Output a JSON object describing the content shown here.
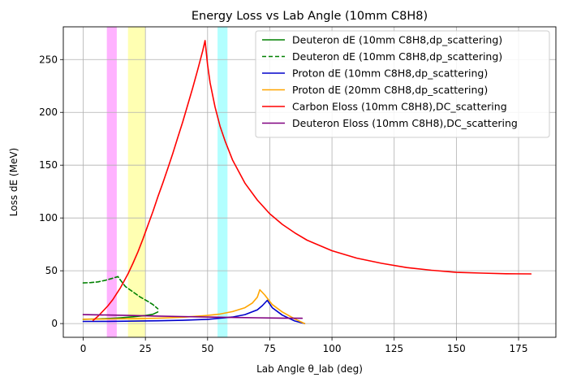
{
  "chart_data": {
    "type": "line",
    "title": "Energy Loss vs Lab Angle (10mm C8H8)",
    "xlabel": "Lab Angle θ_lab (deg)",
    "ylabel": "Loss dE (MeV)",
    "xlim": [
      -8,
      190
    ],
    "ylim": [
      -13,
      281
    ],
    "xticks": [
      0,
      25,
      50,
      75,
      100,
      125,
      150,
      175
    ],
    "yticks": [
      0,
      50,
      100,
      150,
      200,
      250
    ],
    "grid": true,
    "legend_position": "top-right",
    "bands": [
      {
        "x0": 9.5,
        "x1": 13.5,
        "color": "#ff00ff",
        "opacity": 0.3
      },
      {
        "x0": 18,
        "x1": 25,
        "color": "#ffff00",
        "opacity": 0.3
      },
      {
        "x0": 54,
        "x1": 58,
        "color": "#00ffff",
        "opacity": 0.3
      }
    ],
    "series": [
      {
        "name": "Deuteron dE (10mm C8H8,dp_scattering)",
        "color": "#008000",
        "dash": "solid",
        "x": [
          0,
          5,
          10,
          15,
          20,
          25,
          28,
          30
        ],
        "y": [
          4,
          4.3,
          4.8,
          5.5,
          6.4,
          7.6,
          8.8,
          11
        ]
      },
      {
        "name": "Deuteron dE (10mm C8H8,dp_scattering)",
        "color": "#008000",
        "dash": "dashed",
        "x": [
          0,
          3,
          6,
          9,
          12,
          14,
          15,
          17,
          20,
          23,
          26,
          28,
          30
        ],
        "y": [
          38.5,
          38.8,
          39.5,
          41,
          43,
          44.5,
          41,
          35,
          30,
          25,
          21,
          18,
          14
        ]
      },
      {
        "name": "Proton dE (10mm C8H8,dp_scattering)",
        "color": "#0000cc",
        "dash": "solid",
        "x": [
          0,
          10,
          20,
          30,
          40,
          50,
          60,
          65,
          70,
          72,
          74,
          76,
          80,
          85,
          89
        ],
        "y": [
          2,
          2.1,
          2.3,
          2.6,
          3.1,
          4,
          6.2,
          8.5,
          13,
          17,
          22,
          15,
          8,
          2.5,
          0
        ]
      },
      {
        "name": "Proton dE (20mm C8H8,dp_scattering)",
        "color": "#ffa500",
        "dash": "solid",
        "x": [
          0,
          10,
          20,
          30,
          40,
          50,
          55,
          60,
          65,
          68,
          70,
          71,
          73,
          76,
          80,
          85,
          89
        ],
        "y": [
          4.2,
          4.3,
          4.6,
          5.1,
          6,
          7.7,
          9,
          11.3,
          15,
          19.5,
          25,
          32,
          27,
          18,
          11,
          4.5,
          0
        ]
      },
      {
        "name": "Carbon Eloss (10mm C8H8),DC_scattering",
        "color": "#ff0000",
        "dash": "solid",
        "x": [
          4,
          6,
          8,
          10,
          12,
          15,
          18,
          20,
          22,
          24,
          26,
          28,
          30,
          32,
          34,
          36,
          38,
          40,
          42,
          44,
          46,
          48,
          49,
          50,
          51,
          53,
          55,
          57,
          60,
          65,
          70,
          75,
          80,
          85,
          90,
          100,
          110,
          120,
          130,
          140,
          150,
          160,
          170,
          180
        ],
        "y": [
          3,
          7,
          12,
          17,
          23,
          34,
          47,
          57,
          68,
          80,
          93,
          106,
          120,
          133,
          147,
          161,
          176,
          191,
          207,
          223,
          240,
          258,
          268,
          245,
          228,
          205,
          187,
          173,
          155,
          133,
          117,
          104,
          94,
          86,
          79,
          69,
          62,
          57,
          53,
          50.5,
          48.5,
          47.8,
          47.2,
          47
        ]
      },
      {
        "name": "Deuteron Eloss (10mm C8H8),DC_scattering",
        "color": "#800080",
        "dash": "solid",
        "x": [
          0,
          10,
          20,
          30,
          40,
          50,
          60,
          70,
          80,
          88
        ],
        "y": [
          8.5,
          8.1,
          7.6,
          7.1,
          6.6,
          6.2,
          5.8,
          5.5,
          5.2,
          5
        ]
      }
    ]
  }
}
